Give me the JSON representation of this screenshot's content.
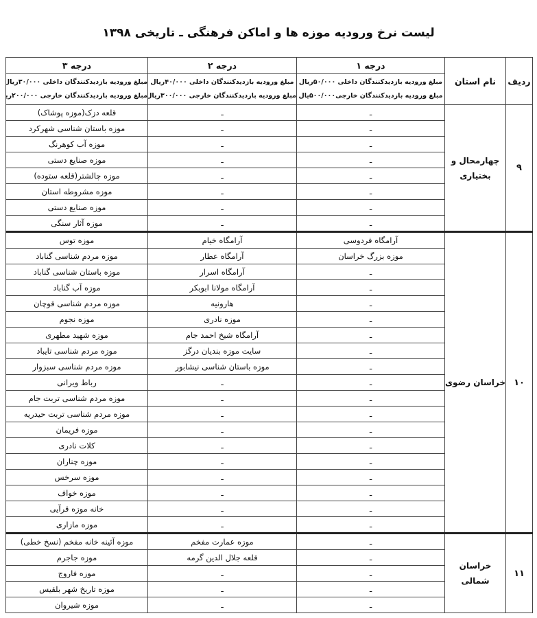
{
  "title": "لیست نرخ ورودیه موزه ها و اماکن فرهنگی ـ تاریخی ۱۳۹۸",
  "headers": {
    "row": "ردیف",
    "province": "نام استان",
    "grade1": "درجه ۱",
    "grade2": "درجه ۲",
    "grade3": "درجه ۳",
    "grade1_fee_domestic": "مبلغ ورودیه بازدیدکنندگان داخلی ۵۰/۰۰۰ریال",
    "grade1_fee_foreign": "مبلغ ورودیه بازدیدکنندگان خارجی۵۰۰/۰۰۰یال",
    "grade2_fee_domestic": "مبلغ ورودیه بازدیدکنندگان داخلی ۴۰/۰۰۰ریال",
    "grade2_fee_foreign": "مبلغ ورودیه بازدیدکنندگان خارجی ۳۰۰/۰۰۰ریال",
    "grade3_fee_domestic": "مبلغ ورودیه بازدیدکنندگان داخلی ۳۰/۰۰۰ریال",
    "grade3_fee_foreign": "مبلغ ورودیه بازدیدکنندگان خارجی ۲۰۰/۰۰۰ریال"
  },
  "sections": [
    {
      "num": "۹",
      "province": "چهارمحال و بختیاری",
      "rows": [
        [
          "ـ",
          "ـ",
          "قلعه دزک(موزه پوشاک)"
        ],
        [
          "ـ",
          "ـ",
          "موزه باستان شناسی شهرکرد"
        ],
        [
          "ـ",
          "ـ",
          "موزه آب کوهرنگ"
        ],
        [
          "ـ",
          "ـ",
          "موزه صنایع دستی"
        ],
        [
          "ـ",
          "ـ",
          "موزه چالشتر(قلعه ستوده)"
        ],
        [
          "ـ",
          "ـ",
          "موزه مشروطه استان"
        ],
        [
          "ـ",
          "ـ",
          "موزه صنایع دستی"
        ],
        [
          "ـ",
          "ـ",
          "موزه آثار سنگی"
        ]
      ]
    },
    {
      "num": "۱۰",
      "province": "خراسان رضوی",
      "rows": [
        [
          "آرامگاه فردوسی",
          "آرامگاه خیام",
          "موزه توس"
        ],
        [
          "موزه بزرگ خراسان",
          "آرامگاه عطار",
          "موزه مردم شناسی گناباد"
        ],
        [
          "ـ",
          "آرامگاه اسرار",
          "موزه باستان شناسی گناباد"
        ],
        [
          "ـ",
          "آرامگاه مولانا ابوبکر",
          "موزه آب گناباد"
        ],
        [
          "ـ",
          "هارونیه",
          "موزه مردم شناسی قوچان"
        ],
        [
          "ـ",
          "موزه نادری",
          "موزه نجوم"
        ],
        [
          "ـ",
          "آرامگاه شیخ احمد جام",
          "موزه شهید مطهری"
        ],
        [
          "ـ",
          "سایت موزه بندیان درگز",
          "موزه مردم شناسی تایباد"
        ],
        [
          "ـ",
          "موزه باستان شناسی نیشابور",
          "موزه مردم شناسی سبزوار"
        ],
        [
          "ـ",
          "ـ",
          "رباط ویرانی"
        ],
        [
          "ـ",
          "ـ",
          "موزه مردم شناسی تربت جام"
        ],
        [
          "ـ",
          "ـ",
          "موزه مردم شناسی تربت حیدریه"
        ],
        [
          "ـ",
          "ـ",
          "موزه فریمان"
        ],
        [
          "ـ",
          "ـ",
          "کلات نادری"
        ],
        [
          "ـ",
          "ـ",
          "موزه چناران"
        ],
        [
          "ـ",
          "ـ",
          "موزه سرخس"
        ],
        [
          "ـ",
          "ـ",
          "موزه خواف"
        ],
        [
          "ـ",
          "ـ",
          "خانه موزه قرآیی"
        ],
        [
          "ـ",
          "ـ",
          "موزه مازاری"
        ]
      ]
    },
    {
      "num": "۱۱",
      "province": "خراسان شمالی",
      "rows": [
        [
          "ـ",
          "موزه عمارت مفخم",
          "موزه آئینه خانه مفخم (نسخ خطی)"
        ],
        [
          "ـ",
          "قلعه جلال الدین گرمه",
          "موزه جاجرم"
        ],
        [
          "ـ",
          "ـ",
          "موزه فاروج"
        ],
        [
          "ـ",
          "ـ",
          "موزه تاریخ شهر بلقیس"
        ],
        [
          "ـ",
          "ـ",
          "موزه شیروان"
        ]
      ]
    }
  ]
}
